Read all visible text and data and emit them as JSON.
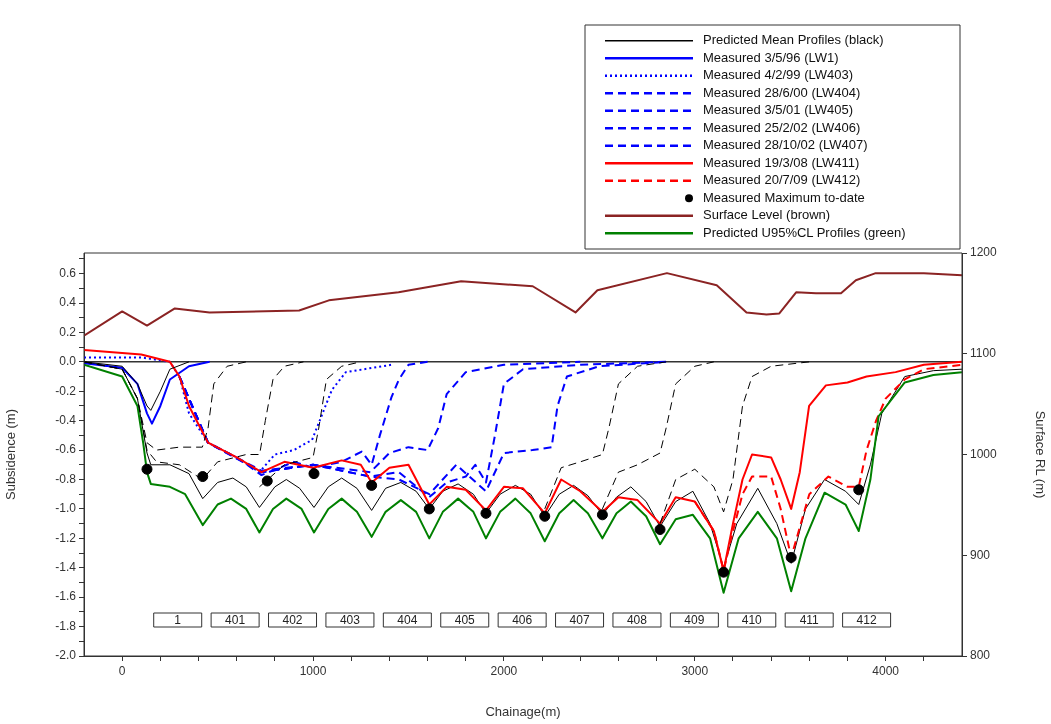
{
  "chart_data": {
    "type": "line",
    "xlabel": "Chainage(m)",
    "ylabel": "Subsidence (m)",
    "y2label": "Surface RL (m)",
    "xlim": [
      -200,
      4400
    ],
    "xticks": [
      0,
      {
        "value": 200,
        "label": null
      },
      {
        "value": 400,
        "label": null
      },
      {
        "value": 600,
        "label": null
      },
      {
        "value": 800,
        "label": null
      },
      1000,
      {
        "value": 1200,
        "label": null
      },
      {
        "value": 1400,
        "label": null
      },
      {
        "value": 1600,
        "label": null
      },
      {
        "value": 1800,
        "label": null
      },
      2000,
      {
        "value": 2200,
        "label": null
      },
      {
        "value": 2400,
        "label": null
      },
      {
        "value": 2600,
        "label": null
      },
      {
        "value": 2800,
        "label": null
      },
      3000,
      {
        "value": 3200,
        "label": null
      },
      {
        "value": 3400,
        "label": null
      },
      {
        "value": 3600,
        "label": null
      },
      {
        "value": 3800,
        "label": null
      },
      4000,
      {
        "value": 4200,
        "label": null
      }
    ],
    "ylim": [
      -2,
      0.74
    ],
    "yticks": [
      {
        "value": -2,
        "label": "-2.0"
      },
      {
        "value": -1.9,
        "label": null
      },
      {
        "value": -1.8,
        "label": "-1.8"
      },
      {
        "value": -1.7,
        "label": null
      },
      {
        "value": -1.6,
        "label": "-1.6"
      },
      {
        "value": -1.5,
        "label": null
      },
      {
        "value": -1.4,
        "label": "-1.4"
      },
      {
        "value": -1.3,
        "label": null
      },
      {
        "value": -1.2,
        "label": "-1.2"
      },
      {
        "value": -1.1,
        "label": null
      },
      {
        "value": -1,
        "label": "-1.0"
      },
      {
        "value": -0.9,
        "label": null
      },
      {
        "value": -0.8,
        "label": "-0.8"
      },
      {
        "value": -0.7,
        "label": null
      },
      {
        "value": -0.6,
        "label": "-0.6"
      },
      {
        "value": -0.5,
        "label": null
      },
      {
        "value": -0.4,
        "label": "-0.4"
      },
      {
        "value": -0.3,
        "label": null
      },
      {
        "value": -0.2,
        "label": "-0.2"
      },
      {
        "value": -0.1,
        "label": null
      },
      {
        "value": 0,
        "label": "0.0"
      },
      {
        "value": 0.1,
        "label": null
      },
      {
        "value": 0.2,
        "label": "0.2"
      },
      {
        "value": 0.3,
        "label": null
      },
      {
        "value": 0.4,
        "label": "0.4"
      },
      {
        "value": 0.5,
        "label": null
      },
      {
        "value": 0.6,
        "label": "0.6"
      },
      {
        "value": 0.7,
        "label": null
      }
    ],
    "y2lim": [
      800,
      1200
    ],
    "y2ticks": [
      800,
      900,
      1000,
      1100,
      1200
    ],
    "legend": "top right",
    "ref_lines": [
      {
        "axis": "y",
        "value": 0,
        "color": "#333333"
      }
    ],
    "annotations": [
      "1",
      "401",
      "402",
      "403",
      "404",
      "405",
      "406",
      "407",
      "408",
      "409",
      "410",
      "411",
      "412"
    ],
    "series": [
      {
        "name": "Predicted Mean Profiles (black)",
        "color": "#000000",
        "line_style": "solid",
        "x": [
          -200,
          0,
          80,
          130,
          150,
          250,
          350,
          422,
          500,
          580,
          650,
          719,
          800,
          860,
          930,
          1005,
          1080,
          1150,
          1230,
          1307,
          1380,
          1460,
          1540,
          1609,
          1680,
          1760,
          1840,
          1906,
          1980,
          2060,
          2140,
          2214,
          2290,
          2365,
          2440,
          2516,
          2590,
          2665,
          2745,
          2818,
          2900,
          2990,
          3080,
          3151,
          3220,
          3330,
          3430,
          3505,
          3580,
          3680,
          3790,
          3859,
          3920,
          3980,
          4100,
          4250,
          4400
        ],
        "values": [
          0,
          -0.05,
          -0.25,
          -0.62,
          -0.7,
          -0.7,
          -0.76,
          -0.93,
          -0.82,
          -0.79,
          -0.85,
          -0.99,
          -0.85,
          -0.8,
          -0.86,
          -0.99,
          -0.85,
          -0.79,
          -0.86,
          -1.01,
          -0.86,
          -0.82,
          -0.88,
          -1.0,
          -0.88,
          -0.83,
          -0.9,
          -1.03,
          -0.9,
          -0.84,
          -0.9,
          -1.05,
          -0.9,
          -0.84,
          -0.91,
          -1.04,
          -0.92,
          -0.85,
          -0.95,
          -1.12,
          -0.95,
          -0.88,
          -1.1,
          -1.4,
          -1.1,
          -0.86,
          -1.1,
          -1.37,
          -1.0,
          -0.8,
          -0.88,
          -0.97,
          -0.7,
          -0.35,
          -0.1,
          -0.06,
          -0.05
        ]
      },
      {
        "name": "Measured 3/5/96 (LW1)",
        "color": "#0000ff",
        "line_style": "solid",
        "x": [
          -200,
          0,
          80,
          130,
          156,
          200,
          250,
          350,
          458
        ],
        "values": [
          -0.01,
          -0.04,
          -0.15,
          -0.35,
          -0.42,
          -0.3,
          -0.12,
          -0.03,
          0
        ]
      },
      {
        "name": "Measured 4/2/99 (LW403)",
        "color": "#0000ff",
        "line_style": "dotted",
        "x": [
          -200,
          100,
          250,
          300,
          350,
          450,
          600,
          719,
          800,
          900,
          995,
          1050,
          1099,
          1172,
          1411
        ],
        "values": [
          0.03,
          0.03,
          0,
          -0.1,
          -0.35,
          -0.55,
          -0.65,
          -0.75,
          -0.63,
          -0.6,
          -0.53,
          -0.35,
          -0.19,
          -0.07,
          -0.02
        ]
      },
      {
        "name": "Measured 28/6/00 (LW404)",
        "color": "#0000ff",
        "line_style": "dashed",
        "x": [
          300,
          450,
          600,
          730,
          900,
          1000,
          1150,
          1255,
          1307,
          1350,
          1411,
          1450,
          1500,
          1600
        ],
        "values": [
          -0.1,
          -0.55,
          -0.65,
          -0.77,
          -0.68,
          -0.72,
          -0.68,
          -0.61,
          -0.7,
          -0.5,
          -0.24,
          -0.12,
          -0.02,
          0
        ]
      },
      {
        "name": "Measured 3/5/01 (LW405)",
        "color": "#0000ff",
        "line_style": "dashed",
        "x": [
          300,
          450,
          730,
          1000,
          1300,
          1400,
          1500,
          1600,
          1656,
          1700,
          1800,
          2000,
          2400
        ],
        "values": [
          -0.1,
          -0.55,
          -0.74,
          -0.7,
          -0.75,
          -0.62,
          -0.58,
          -0.6,
          -0.45,
          -0.22,
          -0.07,
          -0.02,
          0
        ]
      },
      {
        "name": "Measured 25/2/02 (LW406)",
        "color": "#0000ff",
        "line_style": "dashed",
        "x": [
          300,
          450,
          730,
          1000,
          1300,
          1450,
          1609,
          1700,
          1800,
          1850,
          1906,
          1953,
          2000,
          2100,
          2400,
          2850
        ],
        "values": [
          -0.1,
          -0.55,
          -0.75,
          -0.7,
          -0.78,
          -0.75,
          -0.92,
          -0.82,
          -0.78,
          -0.7,
          -0.82,
          -0.5,
          -0.15,
          -0.05,
          -0.02,
          0
        ]
      },
      {
        "name": "Measured 28/10/02 (LW407)",
        "color": "#0000ff",
        "line_style": "dashed",
        "x": [
          300,
          450,
          730,
          1000,
          1300,
          1450,
          1609,
          1750,
          1906,
          2000,
          2150,
          2250,
          2281,
          2330,
          2500,
          2850
        ],
        "values": [
          -0.1,
          -0.55,
          -0.75,
          -0.7,
          -0.78,
          -0.8,
          -0.9,
          -0.7,
          -0.88,
          -0.62,
          -0.6,
          -0.58,
          -0.3,
          -0.1,
          -0.03,
          0
        ]
      },
      {
        "name": "Measured 19/3/08 (LW411)",
        "color": "#ff0000",
        "line_style": "solid",
        "x": [
          -200,
          100,
          250,
          300,
          350,
          450,
          600,
          730,
          850,
          1000,
          1150,
          1250,
          1307,
          1400,
          1500,
          1609,
          1700,
          1800,
          1906,
          2000,
          2100,
          2214,
          2300,
          2400,
          2516,
          2600,
          2700,
          2818,
          2900,
          3000,
          3100,
          3151,
          3200,
          3250,
          3300,
          3400,
          3450,
          3505,
          3550,
          3599,
          3687,
          3800,
          3900,
          4052,
          4200,
          4400
        ],
        "values": [
          0.08,
          0.05,
          0,
          -0.1,
          -0.3,
          -0.55,
          -0.65,
          -0.75,
          -0.68,
          -0.72,
          -0.67,
          -0.7,
          -0.82,
          -0.72,
          -0.7,
          -0.97,
          -0.85,
          -0.87,
          -1.01,
          -0.85,
          -0.86,
          -1.03,
          -0.8,
          -0.88,
          -1.02,
          -0.92,
          -0.94,
          -1.1,
          -0.92,
          -0.95,
          -1.15,
          -1.42,
          -1.1,
          -0.8,
          -0.63,
          -0.65,
          -0.8,
          -1.0,
          -0.75,
          -0.3,
          -0.16,
          -0.14,
          -0.1,
          -0.07,
          -0.02,
          0
        ]
      },
      {
        "name": "Measured 20/7/09 (LW412)",
        "color": "#ff0000",
        "line_style": "dashed",
        "x": [
          3000,
          3100,
          3151,
          3200,
          3250,
          3300,
          3400,
          3450,
          3505,
          3600,
          3700,
          3800,
          3859,
          3900,
          3950,
          4000,
          4100,
          4200,
          4400
        ],
        "values": [
          -0.95,
          -1.15,
          -1.42,
          -1.15,
          -0.9,
          -0.78,
          -0.78,
          -1.0,
          -1.33,
          -0.9,
          -0.78,
          -0.85,
          -0.85,
          -0.6,
          -0.4,
          -0.25,
          -0.12,
          -0.05,
          -0.02
        ]
      },
      {
        "name": "Measured Maximum to-date",
        "type": "scatter",
        "marker": "circle",
        "color": "#000000",
        "x": [
          130,
          422,
          760,
          1005,
          1307,
          1609,
          1906,
          2214,
          2516,
          2818,
          3151,
          3505,
          3859
        ],
        "values": [
          -0.73,
          -0.78,
          -0.81,
          -0.76,
          -0.84,
          -1.0,
          -1.03,
          -1.05,
          -1.04,
          -1.14,
          -1.43,
          -1.33,
          -0.87
        ]
      },
      {
        "name": "Surface Level (brown)",
        "color": "#8b2323",
        "line_style": "solid",
        "axis": "y2",
        "x": [
          -200,
          0,
          130,
          276,
          458,
          927,
          1083,
          1448,
          1776,
          2151,
          2375,
          2490,
          2854,
          3115,
          3271,
          3375,
          3443,
          3531,
          3635,
          3766,
          3844,
          3948,
          4200,
          4400
        ],
        "values": [
          1118,
          1142,
          1128,
          1145,
          1141,
          1143,
          1153,
          1161,
          1172,
          1167,
          1141,
          1163,
          1180,
          1168,
          1141,
          1139,
          1140,
          1161,
          1160,
          1160,
          1173,
          1180,
          1180,
          1178
        ]
      },
      {
        "name": "Predicted U95%CL Profiles (green)",
        "color": "#008000",
        "line_style": "solid",
        "x": [
          -200,
          0,
          80,
          110,
          130,
          150,
          250,
          330,
          422,
          500,
          570,
          650,
          719,
          790,
          860,
          940,
          1005,
          1080,
          1150,
          1230,
          1307,
          1380,
          1460,
          1540,
          1609,
          1680,
          1760,
          1840,
          1906,
          1980,
          2060,
          2140,
          2214,
          2290,
          2365,
          2440,
          2516,
          2590,
          2665,
          2745,
          2818,
          2900,
          2990,
          3080,
          3151,
          3230,
          3330,
          3430,
          3505,
          3580,
          3680,
          3790,
          3859,
          3920,
          3963,
          4100,
          4250,
          4400
        ],
        "values": [
          -0.02,
          -0.1,
          -0.3,
          -0.55,
          -0.75,
          -0.83,
          -0.85,
          -0.9,
          -1.11,
          -0.97,
          -0.93,
          -1.0,
          -1.16,
          -1.0,
          -0.93,
          -1.0,
          -1.16,
          -1.0,
          -0.93,
          -1.02,
          -1.19,
          -1.02,
          -0.94,
          -1.02,
          -1.2,
          -1.02,
          -0.93,
          -1.02,
          -1.2,
          -1.02,
          -0.93,
          -1.03,
          -1.22,
          -1.03,
          -0.94,
          -1.03,
          -1.2,
          -1.03,
          -0.95,
          -1.05,
          -1.24,
          -1.07,
          -1.04,
          -1.2,
          -1.57,
          -1.2,
          -1.02,
          -1.2,
          -1.56,
          -1.2,
          -0.89,
          -0.97,
          -1.15,
          -0.8,
          -0.37,
          -0.14,
          -0.09,
          -0.07
        ]
      },
      {
        "color": "#000000",
        "line_style": "solid",
        "x": [
          -200,
          0,
          80,
          130,
          150,
          200,
          250,
          350
        ],
        "values": [
          0,
          -0.03,
          -0.15,
          -0.3,
          -0.33,
          -0.2,
          -0.05,
          0
        ]
      },
      {
        "color": "#000000",
        "line_style": "dashed",
        "x": [
          -200,
          0,
          80,
          130,
          180,
          300,
          420,
          450,
          480,
          550,
          650
        ],
        "values": [
          0,
          -0.05,
          -0.25,
          -0.55,
          -0.6,
          -0.58,
          -0.58,
          -0.45,
          -0.15,
          -0.03,
          0
        ]
      },
      {
        "color": "#000000",
        "line_style": "dashed",
        "x": [
          -200,
          0,
          80,
          130,
          180,
          300,
          420,
          500,
          650,
          720,
          750,
          790,
          850,
          950
        ],
        "values": [
          0,
          -0.05,
          -0.25,
          -0.6,
          -0.68,
          -0.7,
          -0.8,
          -0.68,
          -0.63,
          -0.63,
          -0.4,
          -0.12,
          -0.03,
          0
        ]
      },
      {
        "color": "#000000",
        "line_style": "dashed",
        "x": [
          719,
          850,
          1000,
          1030,
          1070,
          1150,
          1250
        ],
        "values": [
          -0.85,
          -0.7,
          -0.65,
          -0.45,
          -0.12,
          -0.03,
          0
        ]
      },
      {
        "color": "#000000",
        "line_style": "dashed",
        "x": [
          2214,
          2300,
          2400,
          2516,
          2550,
          2600,
          2700,
          2850
        ],
        "values": [
          -1.0,
          -0.72,
          -0.68,
          -0.63,
          -0.45,
          -0.15,
          -0.03,
          0
        ]
      },
      {
        "color": "#000000",
        "line_style": "dashed",
        "x": [
          2516,
          2600,
          2700,
          2818,
          2850,
          2900,
          3000,
          3100
        ],
        "values": [
          -1.0,
          -0.75,
          -0.7,
          -0.62,
          -0.45,
          -0.15,
          -0.03,
          0
        ]
      },
      {
        "color": "#000000",
        "line_style": "dashed",
        "x": [
          2818,
          2900,
          3000,
          3100,
          3151,
          3200,
          3250,
          3300,
          3400,
          3600
        ],
        "values": [
          -1.1,
          -0.8,
          -0.73,
          -0.85,
          -1.02,
          -0.8,
          -0.3,
          -0.1,
          -0.03,
          0
        ]
      }
    ]
  }
}
